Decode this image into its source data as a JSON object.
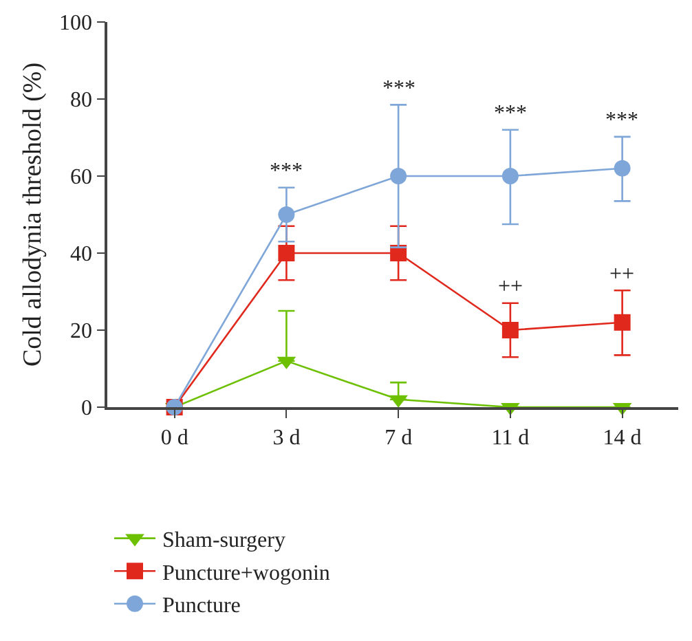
{
  "chart_data": {
    "type": "line",
    "ylabel": "Cold allodynia threshold (%)",
    "categories": [
      "0 d",
      "3 d",
      "7 d",
      "11 d",
      "14 d"
    ],
    "series": [
      {
        "name": "Sham-surgery",
        "color": "#6cc000",
        "marker": "triangle",
        "values": [
          0,
          12,
          2,
          0,
          0
        ],
        "errors": [
          null,
          [
            12,
            25
          ],
          [
            2,
            6.4
          ],
          null,
          null
        ]
      },
      {
        "name": "Puncture+wogonin",
        "color": "#e0281c",
        "marker": "square",
        "values": [
          0,
          40,
          40,
          20,
          22
        ],
        "errors": [
          null,
          [
            33,
            47
          ],
          [
            33,
            47
          ],
          [
            13,
            27
          ],
          [
            13.5,
            30.3
          ]
        ]
      },
      {
        "name": "Puncture",
        "color": "#7fa6d8",
        "marker": "circle",
        "values": [
          0,
          50,
          60,
          60,
          62
        ],
        "errors": [
          null,
          [
            43,
            57
          ],
          [
            41.5,
            78.5
          ],
          [
            47.5,
            72
          ],
          [
            53.5,
            70.2
          ]
        ]
      }
    ],
    "annotations": [
      {
        "text": "***",
        "x": "3 d",
        "y": 57
      },
      {
        "text": "***",
        "x": "7 d",
        "y": 78.5
      },
      {
        "text": "***",
        "x": "11 d",
        "y": 72
      },
      {
        "text": "***",
        "x": "14 d",
        "y": 70.2
      },
      {
        "text": "++",
        "x": "11 d",
        "y": 27
      },
      {
        "text": "++",
        "x": "14 d",
        "y": 30.3
      }
    ],
    "ylim": [
      0,
      100
    ],
    "yticks": [
      0,
      20,
      40,
      60,
      80,
      100
    ],
    "grid": false,
    "legend": "bottom"
  }
}
